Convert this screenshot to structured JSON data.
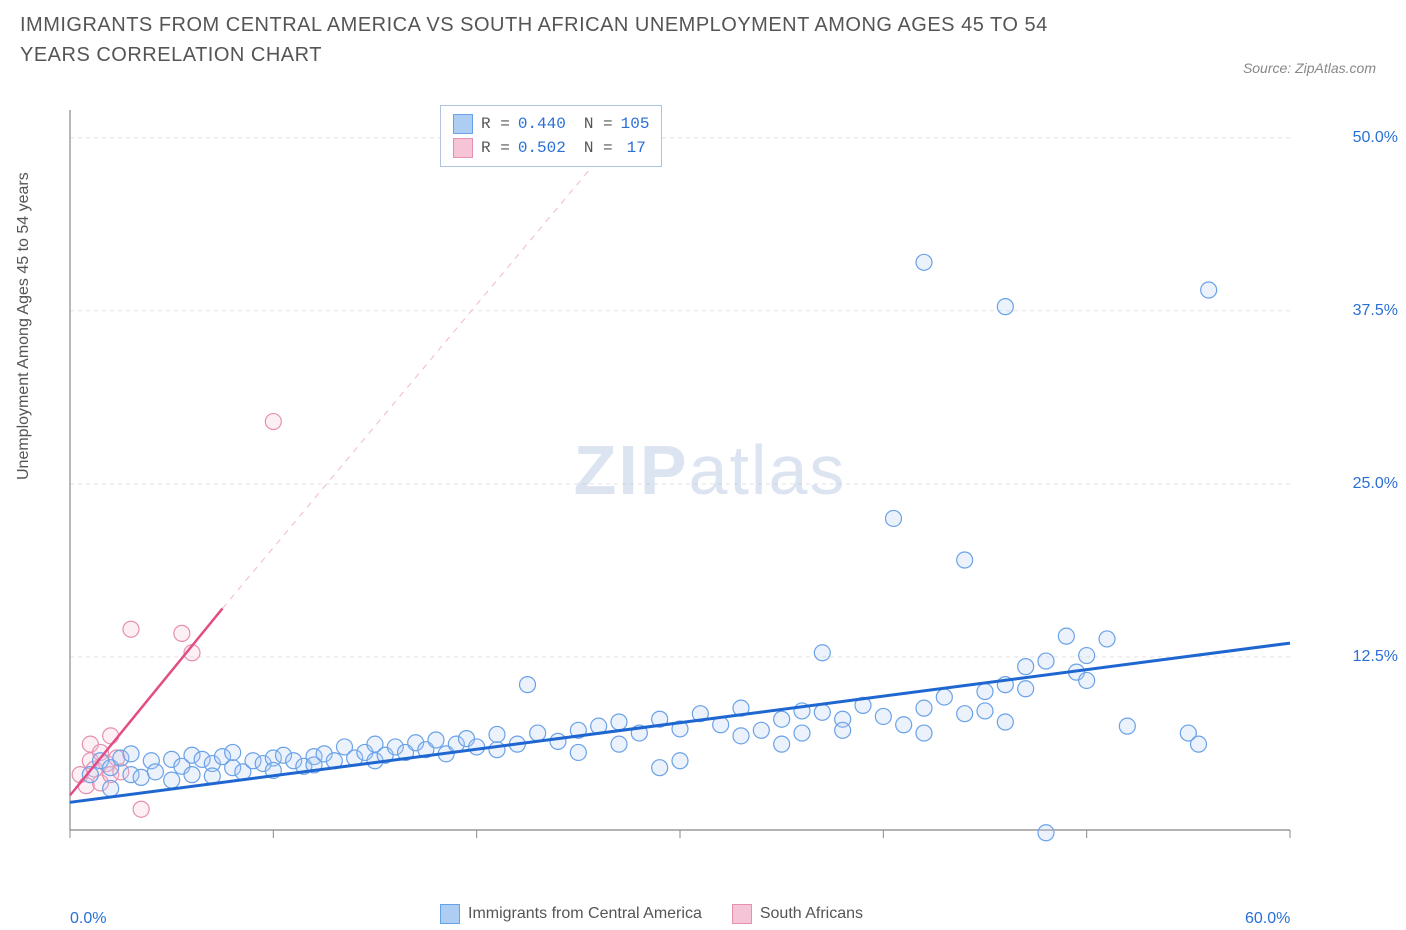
{
  "title": "IMMIGRANTS FROM CENTRAL AMERICA VS SOUTH AFRICAN UNEMPLOYMENT AMONG AGES 45 TO 54 YEARS CORRELATION CHART",
  "source": "Source: ZipAtlas.com",
  "watermark_primary": "ZIP",
  "watermark_secondary": "atlas",
  "y_axis_label": "Unemployment Among Ages 45 to 54 years",
  "chart": {
    "type": "scatter",
    "background_color": "#ffffff",
    "grid_color": "#e4e4e4",
    "axis_color": "#888888",
    "xlim": [
      0,
      60
    ],
    "ylim": [
      0,
      52
    ],
    "x_ticks": [
      0,
      10,
      20,
      30,
      40,
      50,
      60
    ],
    "x_tick_labels": {
      "0": "0.0%",
      "60": "60.0%"
    },
    "y_ticks": [
      12.5,
      25.0,
      37.5,
      50.0
    ],
    "y_tick_labels": [
      "12.5%",
      "25.0%",
      "37.5%",
      "50.0%"
    ],
    "marker_radius": 8,
    "marker_stroke_width": 1.2,
    "marker_fill_opacity": 0.25,
    "series": [
      {
        "name": "Immigrants from Central America",
        "color_stroke": "#6aa2e8",
        "color_fill": "#aecdf2",
        "R": "0.440",
        "N": "105",
        "trend_line": {
          "x1": 0,
          "y1": 2.0,
          "x2": 60,
          "y2": 13.5,
          "color": "#1f66d0",
          "width": 3,
          "dash": "none"
        },
        "trend_line_ext": {
          "x1": 0,
          "y1": 2.0,
          "x2": 60,
          "y2": 13.5,
          "color": "#1f66d0",
          "width": 1,
          "dash": "none"
        },
        "points": [
          [
            1,
            4
          ],
          [
            1.5,
            5
          ],
          [
            2,
            4.5
          ],
          [
            2,
            3
          ],
          [
            2.5,
            5.2
          ],
          [
            3,
            4
          ],
          [
            3,
            5.5
          ],
          [
            3.5,
            3.8
          ],
          [
            4,
            5
          ],
          [
            4.2,
            4.2
          ],
          [
            5,
            5.1
          ],
          [
            5,
            3.6
          ],
          [
            5.5,
            4.6
          ],
          [
            6,
            5.4
          ],
          [
            6,
            4
          ],
          [
            6.5,
            5.1
          ],
          [
            7,
            4.8
          ],
          [
            7,
            3.9
          ],
          [
            7.5,
            5.3
          ],
          [
            8,
            4.5
          ],
          [
            8,
            5.6
          ],
          [
            8.5,
            4.2
          ],
          [
            9,
            5
          ],
          [
            9.5,
            4.8
          ],
          [
            10,
            5.2
          ],
          [
            10,
            4.3
          ],
          [
            10.5,
            5.4
          ],
          [
            11,
            5
          ],
          [
            11.5,
            4.6
          ],
          [
            12,
            5.3
          ],
          [
            12,
            4.7
          ],
          [
            12.5,
            5.5
          ],
          [
            13,
            5
          ],
          [
            13.5,
            6
          ],
          [
            14,
            5.2
          ],
          [
            14.5,
            5.6
          ],
          [
            15,
            5
          ],
          [
            15,
            6.2
          ],
          [
            15.5,
            5.4
          ],
          [
            16,
            6
          ],
          [
            16.5,
            5.6
          ],
          [
            17,
            6.3
          ],
          [
            17.5,
            5.8
          ],
          [
            18,
            6.5
          ],
          [
            18.5,
            5.5
          ],
          [
            19,
            6.2
          ],
          [
            19.5,
            6.6
          ],
          [
            20,
            6
          ],
          [
            21,
            5.8
          ],
          [
            21,
            6.9
          ],
          [
            22,
            6.2
          ],
          [
            22.5,
            10.5
          ],
          [
            23,
            7
          ],
          [
            24,
            6.4
          ],
          [
            25,
            7.2
          ],
          [
            25,
            5.6
          ],
          [
            26,
            7.5
          ],
          [
            27,
            7.8
          ],
          [
            27,
            6.2
          ],
          [
            28,
            7
          ],
          [
            29,
            4.5
          ],
          [
            29,
            8
          ],
          [
            30,
            7.3
          ],
          [
            30,
            5
          ],
          [
            31,
            8.4
          ],
          [
            32,
            7.6
          ],
          [
            33,
            6.8
          ],
          [
            33,
            8.8
          ],
          [
            34,
            7.2
          ],
          [
            35,
            8
          ],
          [
            35,
            6.2
          ],
          [
            36,
            8.6
          ],
          [
            36,
            7
          ],
          [
            37,
            12.8
          ],
          [
            37,
            8.5
          ],
          [
            38,
            8
          ],
          [
            38,
            7.2
          ],
          [
            39,
            9
          ],
          [
            40,
            8.2
          ],
          [
            40.5,
            22.5
          ],
          [
            41,
            7.6
          ],
          [
            42,
            8.8
          ],
          [
            42,
            7
          ],
          [
            43,
            9.6
          ],
          [
            44,
            8.4
          ],
          [
            44,
            19.5
          ],
          [
            45,
            10
          ],
          [
            45,
            8.6
          ],
          [
            46,
            10.5
          ],
          [
            46,
            7.8
          ],
          [
            47,
            11.8
          ],
          [
            47,
            10.2
          ],
          [
            48,
            -0.2
          ],
          [
            48,
            12.2
          ],
          [
            49,
            14
          ],
          [
            49.5,
            11.4
          ],
          [
            50,
            10.8
          ],
          [
            50,
            12.6
          ],
          [
            51,
            13.8
          ],
          [
            52,
            7.5
          ],
          [
            55,
            7
          ],
          [
            55.5,
            6.2
          ],
          [
            42,
            41
          ],
          [
            46,
            37.8
          ],
          [
            56,
            39
          ]
        ]
      },
      {
        "name": "South Africans",
        "color_stroke": "#e78fb0",
        "color_fill": "#f5c4d6",
        "R": "0.502",
        "N": "17",
        "trend_line": {
          "x1": 0,
          "y1": 2.5,
          "x2": 7.5,
          "y2": 16,
          "color": "#e34d85",
          "width": 2.5,
          "dash": "none"
        },
        "trend_line_ext": {
          "x1": 7.5,
          "y1": 16,
          "x2": 28,
          "y2": 52,
          "color": "#f0b8cc",
          "width": 1,
          "dash": "6,6"
        },
        "points": [
          [
            0.5,
            4
          ],
          [
            0.8,
            3.2
          ],
          [
            1,
            5
          ],
          [
            1,
            6.2
          ],
          [
            1.2,
            4.4
          ],
          [
            1.5,
            5.6
          ],
          [
            1.5,
            3.4
          ],
          [
            1.8,
            4.8
          ],
          [
            2,
            4
          ],
          [
            2,
            6.8
          ],
          [
            2.3,
            5.2
          ],
          [
            2.5,
            4.2
          ],
          [
            3,
            14.5
          ],
          [
            3.5,
            1.5
          ],
          [
            5.5,
            14.2
          ],
          [
            6,
            12.8
          ],
          [
            10,
            29.5
          ]
        ]
      }
    ]
  },
  "bottom_legend": {
    "series1_label": "Immigrants from Central America",
    "series2_label": "South Africans"
  },
  "legend_box": {
    "r_label": "R =",
    "n_label": "N ="
  }
}
